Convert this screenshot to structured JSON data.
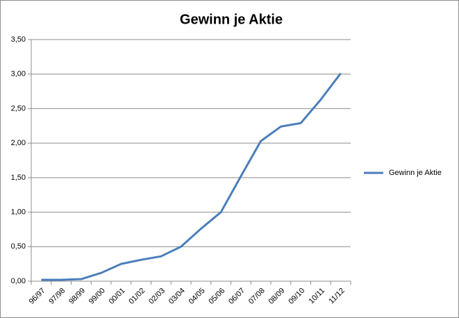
{
  "chart_data": {
    "type": "line",
    "title": "Gewinn je Aktie",
    "categories": [
      "96/97",
      "97/98",
      "98/99",
      "99/00",
      "00/01",
      "01/02",
      "02/03",
      "03/04",
      "04/05",
      "05/06",
      "06/07",
      "07/08",
      "08/09",
      "09/10",
      "10/11",
      "11/12"
    ],
    "series": [
      {
        "name": "Gewinn je Aktie",
        "color": "#4a7ebb",
        "values": [
          0.02,
          0.02,
          0.03,
          0.12,
          0.25,
          0.31,
          0.36,
          0.5,
          0.76,
          1.0,
          1.52,
          2.03,
          2.24,
          2.29,
          2.63,
          3.01
        ]
      }
    ],
    "ylim": [
      0,
      3.5
    ],
    "yticks": [
      {
        "value": 0,
        "label": "0,00"
      },
      {
        "value": 0.5,
        "label": "0,50"
      },
      {
        "value": 1,
        "label": "1,00"
      },
      {
        "value": 1.5,
        "label": "1,50"
      },
      {
        "value": 2,
        "label": "2,00"
      },
      {
        "value": 2.5,
        "label": "2,50"
      },
      {
        "value": 3,
        "label": "3,00"
      },
      {
        "value": 3.5,
        "label": "3,50"
      }
    ],
    "grid": true,
    "legend": "right"
  }
}
